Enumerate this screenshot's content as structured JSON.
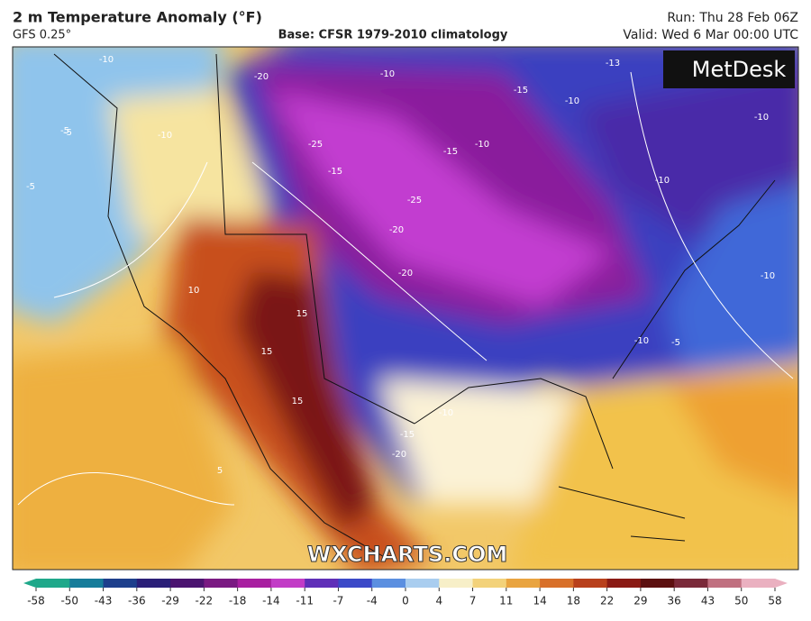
{
  "header": {
    "title": "2 m Temperature Anomaly (°F)",
    "model": "GFS 0.25°",
    "base": "Base: CFSR 1979-2010 climatology",
    "run": "Run: Thu 28 Feb 06Z",
    "valid": "Valid: Wed 6 Mar 00:00 UTC"
  },
  "logo": "MetDesk",
  "watermark": "WXCHARTS.COM",
  "contour_labels": [
    -10,
    -20,
    -10,
    -15,
    -10,
    -5,
    -25,
    -15,
    -10,
    -15,
    -25,
    -20,
    -20,
    -10,
    -10,
    -10,
    15,
    15,
    15,
    10,
    -10,
    -15,
    -20,
    -5,
    5,
    -5,
    -5,
    -10,
    -13,
    -10
  ],
  "colorbar": {
    "ticks": [
      -58,
      -50,
      -43,
      -36,
      -29,
      -22,
      -18,
      -14,
      -11,
      -7,
      -4,
      0,
      4,
      7,
      11,
      14,
      18,
      22,
      29,
      36,
      43,
      50,
      58
    ],
    "colors": [
      "#1fa88a",
      "#167c9a",
      "#1d3f8c",
      "#2a1f78",
      "#4b1470",
      "#7a1a82",
      "#a81fa0",
      "#c23cc6",
      "#5f2fb8",
      "#3b49c8",
      "#5b8fe0",
      "#a9cdef",
      "#f7efc8",
      "#f3d27a",
      "#e9a440",
      "#d8702a",
      "#b8401c",
      "#8a1a14",
      "#5c1010",
      "#7a2a3a",
      "#c07080",
      "#eab0c0"
    ]
  }
}
